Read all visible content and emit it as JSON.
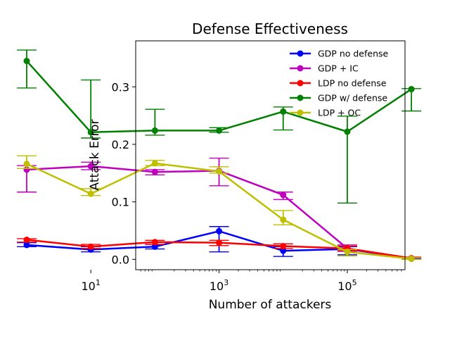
{
  "chart_data": {
    "type": "line",
    "title": "Defense Effectiveness",
    "xlabel": "Number of attackers",
    "ylabel": "Attack Error",
    "xscale": "log",
    "xlim": [
      1.7,
      5.9
    ],
    "ylim": [
      -0.018,
      0.38
    ],
    "grid": false,
    "legend_position": "top-right",
    "x_ticks": [
      {
        "value": 10,
        "label_base": "10",
        "label_exp": "1"
      },
      {
        "value": 1000,
        "label_base": "10",
        "label_exp": "3"
      },
      {
        "value": 100000,
        "label_base": "10",
        "label_exp": "5"
      }
    ],
    "y_ticks": [
      {
        "value": 0.0,
        "label": "0.0"
      },
      {
        "value": 0.1,
        "label": "0.1"
      },
      {
        "value": 0.2,
        "label": "0.2"
      },
      {
        "value": 0.3,
        "label": "0.3"
      }
    ],
    "x": [
      1,
      10,
      100,
      1000,
      10000,
      100000,
      1000000
    ],
    "series": [
      {
        "name": "GDP no defense",
        "color": "#0000ff",
        "values": [
          0.025,
          0.017,
          0.022,
          0.049,
          0.015,
          0.018,
          0.001
        ],
        "err_low": [
          0.022,
          0.013,
          0.018,
          0.013,
          0.005,
          0.008,
          0.0
        ],
        "err_high": [
          0.029,
          0.022,
          0.026,
          0.057,
          0.022,
          0.022,
          0.002
        ]
      },
      {
        "name": "GDP + IC",
        "color": "#bf00bf",
        "values": [
          0.156,
          0.162,
          0.152,
          0.154,
          0.112,
          0.019,
          0.001
        ],
        "err_low": [
          0.117,
          0.156,
          0.147,
          0.128,
          0.104,
          0.014,
          0.0
        ],
        "err_high": [
          0.163,
          0.169,
          0.156,
          0.176,
          0.117,
          0.025,
          0.003
        ]
      },
      {
        "name": "LDP no defense",
        "color": "#ff0000",
        "values": [
          0.034,
          0.022,
          0.03,
          0.029,
          0.023,
          0.019,
          0.002
        ],
        "err_low": [
          0.03,
          0.019,
          0.026,
          0.024,
          0.019,
          0.015,
          0.0
        ],
        "err_high": [
          0.036,
          0.026,
          0.033,
          0.033,
          0.027,
          0.023,
          0.004
        ]
      },
      {
        "name": "GDP w/ defense",
        "color": "#008000",
        "values": [
          0.345,
          0.221,
          0.224,
          0.224,
          0.257,
          0.222,
          0.296
        ],
        "err_low": [
          0.298,
          0.211,
          0.216,
          0.221,
          0.225,
          0.098,
          0.258
        ],
        "err_high": [
          0.364,
          0.312,
          0.261,
          0.229,
          0.265,
          0.249,
          0.297
        ]
      },
      {
        "name": "LDP + OC",
        "color": "#bfbf00",
        "values": [
          0.166,
          0.114,
          0.167,
          0.153,
          0.069,
          0.013,
          0.001
        ],
        "err_low": [
          0.158,
          0.111,
          0.163,
          0.15,
          0.06,
          0.006,
          0.0
        ],
        "err_high": [
          0.18,
          0.123,
          0.172,
          0.161,
          0.085,
          0.017,
          0.003
        ]
      }
    ]
  }
}
